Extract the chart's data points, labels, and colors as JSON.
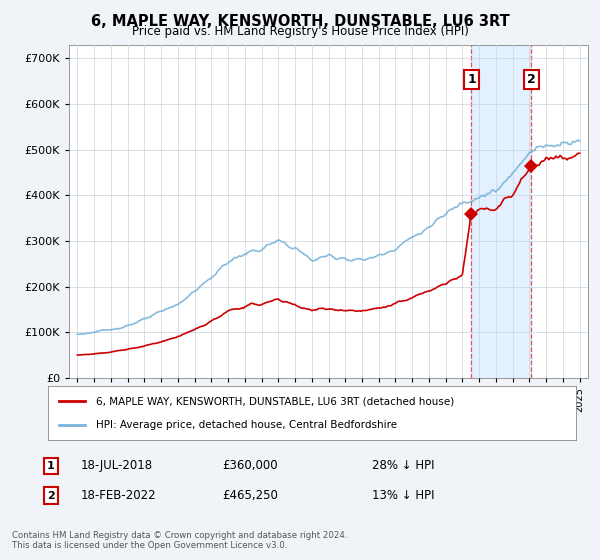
{
  "title": "6, MAPLE WAY, KENSWORTH, DUNSTABLE, LU6 3RT",
  "subtitle": "Price paid vs. HM Land Registry's House Price Index (HPI)",
  "hpi_label": "HPI: Average price, detached house, Central Bedfordshire",
  "property_label": "6, MAPLE WAY, KENSWORTH, DUNSTABLE, LU6 3RT (detached house)",
  "hpi_color": "#7ab4d8",
  "property_color": "#cc0000",
  "marker1_date": "18-JUL-2018",
  "marker1_price": "£360,000",
  "marker1_hpi": "28% ↓ HPI",
  "marker1_x": 2018.54,
  "marker1_y": 360000,
  "marker2_date": "18-FEB-2022",
  "marker2_price": "£465,250",
  "marker2_hpi": "13% ↓ HPI",
  "marker2_x": 2022.12,
  "marker2_y": 465250,
  "footer": "Contains HM Land Registry data © Crown copyright and database right 2024.\nThis data is licensed under the Open Government Licence v3.0.",
  "ylim": [
    0,
    730000
  ],
  "xlim": [
    1994.5,
    2025.5
  ],
  "background_color": "#f0f4f8",
  "plot_bg_color": "#ffffff",
  "shade_color": "#ddeeff"
}
